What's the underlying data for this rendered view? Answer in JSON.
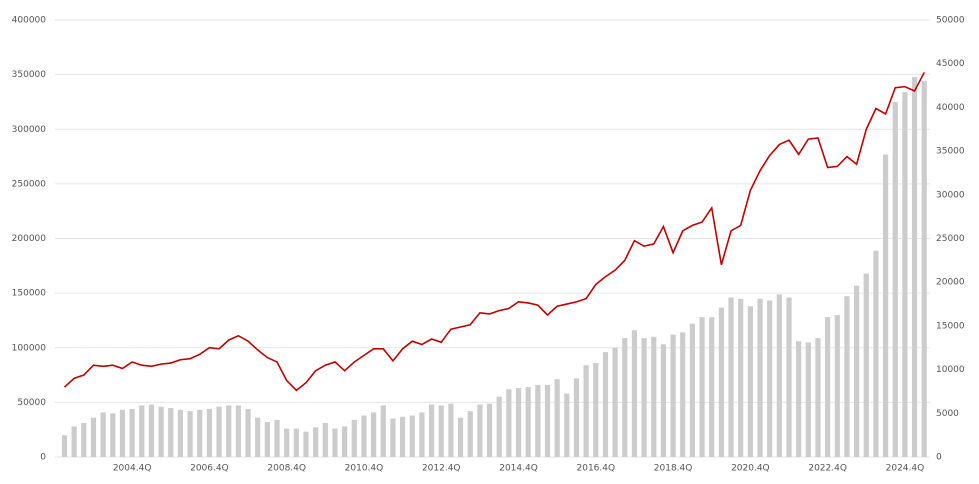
{
  "chart_data": {
    "type": "bar",
    "categories": [
      null,
      null,
      null,
      null,
      null,
      null,
      null,
      "2004.4Q",
      null,
      null,
      null,
      null,
      null,
      null,
      null,
      "2006.4Q",
      null,
      null,
      null,
      null,
      null,
      null,
      null,
      "2008.4Q",
      null,
      null,
      null,
      null,
      null,
      null,
      null,
      "2010.4Q",
      null,
      null,
      null,
      null,
      null,
      null,
      null,
      "2012.4Q",
      null,
      null,
      null,
      null,
      null,
      null,
      null,
      "2014.4Q",
      null,
      null,
      null,
      null,
      null,
      null,
      null,
      "2016.4Q",
      null,
      null,
      null,
      null,
      null,
      null,
      null,
      "2018.4Q",
      null,
      null,
      null,
      null,
      null,
      null,
      null,
      "2020.4Q",
      null,
      null,
      null,
      null,
      null,
      null,
      null,
      "2022.4Q",
      null,
      null,
      null,
      null,
      null,
      null,
      null,
      "2024.4Q",
      null,
      null
    ],
    "series": [
      {
        "type": "bar",
        "axis": "y2",
        "color": "#cccccc",
        "values": [
          2500,
          3500,
          3900,
          4500,
          5100,
          5000,
          5400,
          5500,
          5900,
          6000,
          5750,
          5600,
          5400,
          5250,
          5400,
          5500,
          5750,
          5900,
          5900,
          5500,
          4500,
          4000,
          4250,
          3250,
          3250,
          2900,
          3400,
          3900,
          3250,
          3500,
          4250,
          4750,
          5100,
          5900,
          4400,
          4600,
          4750,
          5100,
          6000,
          5900,
          6100,
          4500,
          5250,
          6000,
          6100,
          6900,
          7750,
          7900,
          8000,
          8250,
          8250,
          8900,
          7250,
          9000,
          10500,
          10750,
          12000,
          12500,
          13600,
          14500,
          13600,
          13750,
          12900,
          14000,
          14250,
          15250,
          16000,
          16000,
          17100,
          18250,
          18100,
          17250,
          18100,
          17900,
          18600,
          18250,
          13250,
          13100,
          13600,
          16000,
          16250,
          18400,
          19600,
          21000,
          23600,
          34600,
          40600,
          41750,
          43500,
          43000
        ]
      },
      {
        "type": "line",
        "color": "#c00000",
        "values": [
          64000,
          72000,
          75000,
          84000,
          83000,
          84000,
          81000,
          87000,
          84000,
          83000,
          85000,
          86000,
          89000,
          90000,
          94000,
          100000,
          99000,
          107000,
          111000,
          106000,
          98000,
          91000,
          87000,
          70000,
          61000,
          68000,
          79000,
          84000,
          87000,
          79000,
          87000,
          93000,
          99000,
          99000,
          88000,
          99000,
          106000,
          103000,
          108000,
          105000,
          117000,
          119000,
          121000,
          132000,
          131000,
          134000,
          136000,
          142000,
          141000,
          139000,
          130000,
          138000,
          140000,
          142000,
          145000,
          158000,
          165000,
          171000,
          180000,
          198000,
          193000,
          195000,
          211000,
          187000,
          207000,
          212000,
          215000,
          228000,
          176000,
          207000,
          212000,
          244000,
          262000,
          276000,
          286000,
          290000,
          277000,
          291000,
          292000,
          265000,
          266000,
          275000,
          268000,
          300000,
          319000,
          314000,
          338000,
          339000,
          335000,
          352000
        ]
      }
    ],
    "ylim": [
      0,
      400000
    ],
    "yticks": [
      0,
      50000,
      100000,
      150000,
      200000,
      250000,
      300000,
      350000,
      400000
    ],
    "y2lim": [
      0,
      50000
    ],
    "y2ticks": [
      0,
      5000,
      10000,
      15000,
      20000,
      25000,
      30000,
      35000,
      40000,
      45000,
      50000
    ],
    "grid": true
  }
}
